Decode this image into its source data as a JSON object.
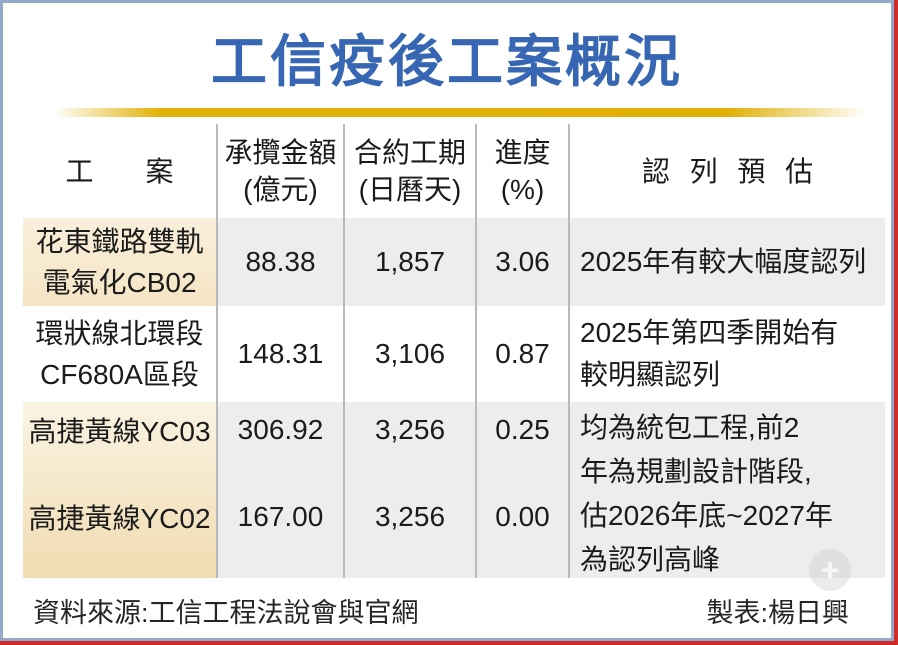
{
  "title": "工信疫後工案概況",
  "table": {
    "headers": {
      "project": "工　案",
      "amount_line1": "承攬金額",
      "amount_line2": "(億元)",
      "duration_line1": "合約工期",
      "duration_line2": "(日曆天)",
      "progress_line1": "進度",
      "progress_line2": "(%)",
      "estimate": "認 列 預 估"
    },
    "rows": [
      {
        "name_line1": "花東鐵路雙軌",
        "name_line2": "電氣化CB02",
        "amount": "88.38",
        "duration": "1,857",
        "progress": "3.06",
        "estimate_line1": "2025年有較大幅度認列"
      },
      {
        "name_line1": "環狀線北環段",
        "name_line2": "CF680A區段",
        "amount": "148.31",
        "duration": "3,106",
        "progress": "0.87",
        "estimate_line1": "2025年第四季開始有",
        "estimate_line2": "較明顯認列"
      },
      {
        "name": "高捷黃線YC03",
        "amount": "306.92",
        "duration": "3,256",
        "progress": "0.25"
      },
      {
        "name": "高捷黃線YC02",
        "amount": "167.00",
        "duration": "3,256",
        "progress": "0.00"
      }
    ],
    "merged_estimate": {
      "line1": "均為統包工程,前2",
      "line2": "年為規劃設計階段,",
      "line3": "估2026年底~2027年",
      "line4": "為認列高峰"
    }
  },
  "footer": {
    "source": "資料來源:工信工程法說會與官網",
    "credit": "製表:楊日興"
  },
  "watermark_glyph": "+",
  "colors": {
    "title_blue": "#3766b3",
    "gold_rule": "#e3b207",
    "cream_cell": "#f8edd5",
    "gray_cell": "#ecedef",
    "frame_blue": "#94a9c9",
    "frame_red": "#cf2b28"
  },
  "chart_data": {
    "type": "table",
    "title": "工信疫後工案概況",
    "columns": [
      "工案",
      "承攬金額(億元)",
      "合約工期(日曆天)",
      "進度(%)",
      "認列預估"
    ],
    "rows": [
      {
        "project": "花東鐵路雙軌電氣化CB02",
        "amount_100m_ntd": 88.38,
        "contract_days": 1857,
        "progress_pct": 3.06,
        "estimate": "2025年有較大幅度認列"
      },
      {
        "project": "環狀線北環段CF680A區段",
        "amount_100m_ntd": 148.31,
        "contract_days": 3106,
        "progress_pct": 0.87,
        "estimate": "2025年第四季開始有較明顯認列"
      },
      {
        "project": "高捷黃線YC03",
        "amount_100m_ntd": 306.92,
        "contract_days": 3256,
        "progress_pct": 0.25,
        "estimate": "均為統包工程,前2年為規劃設計階段,估2026年底~2027年為認列高峰"
      },
      {
        "project": "高捷黃線YC02",
        "amount_100m_ntd": 167.0,
        "contract_days": 3256,
        "progress_pct": 0.0,
        "estimate": "均為統包工程,前2年為規劃設計階段,估2026年底~2027年為認列高峰"
      }
    ],
    "merged_cells": [
      {
        "column": "認列預估",
        "rows": [
          3,
          4
        ]
      }
    ],
    "source": "資料來源:工信工程法說會與官網",
    "credit": "製表:楊日興"
  }
}
